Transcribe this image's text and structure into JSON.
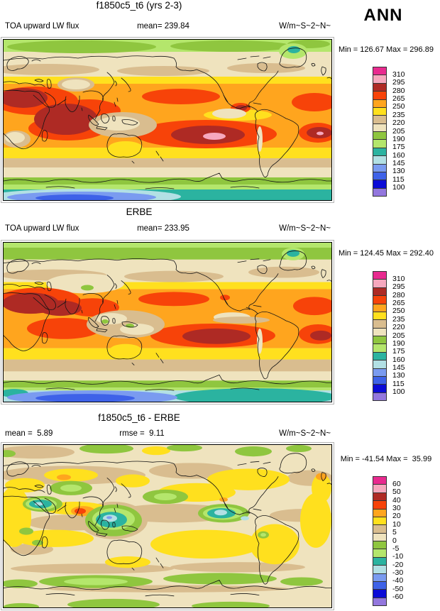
{
  "header": {
    "season_label": "ANN"
  },
  "palette": {
    "colors": [
      "#E82A8F",
      "#F6A8BE",
      "#AE2A24",
      "#F74309",
      "#FFA51E",
      "#FFE01E",
      "#D9BD8F",
      "#EFE3BE",
      "#8FC63F",
      "#B4E66C",
      "#2BB3A0",
      "#B2E0E4",
      "#7A9BF0",
      "#3E62E8",
      "#0B0BD6",
      "#9377DE"
    ]
  },
  "panels": [
    {
      "title": "f1850c5_t6 (yrs 2-3)",
      "var_label": "TOA upward LW flux",
      "mean_label": "mean= 239.84",
      "units": "W/m~S~2~N~",
      "minmax": "Min = 126.67 Max = 296.89",
      "colorbar_labels": [
        "310",
        "295",
        "280",
        "265",
        "250",
        "235",
        "220",
        "205",
        "190",
        "175",
        "160",
        "145",
        "130",
        "115",
        "100"
      ]
    },
    {
      "title": "ERBE",
      "var_label": "TOA upward LW flux",
      "mean_label": "mean= 233.95",
      "units": "W/m~S~2~N~",
      "minmax": "Min = 124.45 Max = 292.40",
      "colorbar_labels": [
        "310",
        "295",
        "280",
        "265",
        "250",
        "235",
        "220",
        "205",
        "190",
        "175",
        "160",
        "145",
        "130",
        "115",
        "100"
      ]
    },
    {
      "title": "f1850c5_t6 - ERBE",
      "mean_label": "mean =  5.89",
      "rmse_label": "rmse =  9.11",
      "units": "W/m~S~2~N~",
      "minmax": "Min = -41.54 Max =  35.99",
      "colorbar_labels": [
        "60",
        "50",
        "40",
        "30",
        "20",
        "10",
        "5",
        "0",
        "-5",
        "-10",
        "-20",
        "-30",
        "-40",
        "-50",
        "-60"
      ]
    }
  ],
  "chart_data": [
    {
      "type": "heatmap",
      "subtype": "global-contour-map",
      "title": "f1850c5_t6 (yrs 2-3)",
      "variable": "TOA upward LW flux",
      "season": "ANN",
      "units": "W/m~S~2~N~",
      "mean": 239.84,
      "min": 126.67,
      "max": 296.89,
      "levels": [
        100,
        115,
        130,
        145,
        160,
        175,
        190,
        205,
        220,
        235,
        250,
        265,
        280,
        295,
        310
      ],
      "projection": "cylindrical equidistant, global, 0-360E",
      "legend_position": "right"
    },
    {
      "type": "heatmap",
      "subtype": "global-contour-map",
      "title": "ERBE",
      "variable": "TOA upward LW flux",
      "season": "ANN",
      "units": "W/m~S~2~N~",
      "mean": 233.95,
      "min": 124.45,
      "max": 292.4,
      "levels": [
        100,
        115,
        130,
        145,
        160,
        175,
        190,
        205,
        220,
        235,
        250,
        265,
        280,
        295,
        310
      ],
      "projection": "cylindrical equidistant, global, 0-360E",
      "legend_position": "right"
    },
    {
      "type": "heatmap",
      "subtype": "global-contour-difference-map",
      "title": "f1850c5_t6 - ERBE",
      "variable": "TOA upward LW flux difference",
      "season": "ANN",
      "units": "W/m~S~2~N~",
      "mean": 5.89,
      "rmse": 9.11,
      "min": -41.54,
      "max": 35.99,
      "levels": [
        -60,
        -50,
        -40,
        -30,
        -20,
        -10,
        -5,
        0,
        5,
        10,
        20,
        30,
        40,
        50,
        60
      ],
      "projection": "cylindrical equidistant, global, 0-360E",
      "legend_position": "right"
    }
  ]
}
